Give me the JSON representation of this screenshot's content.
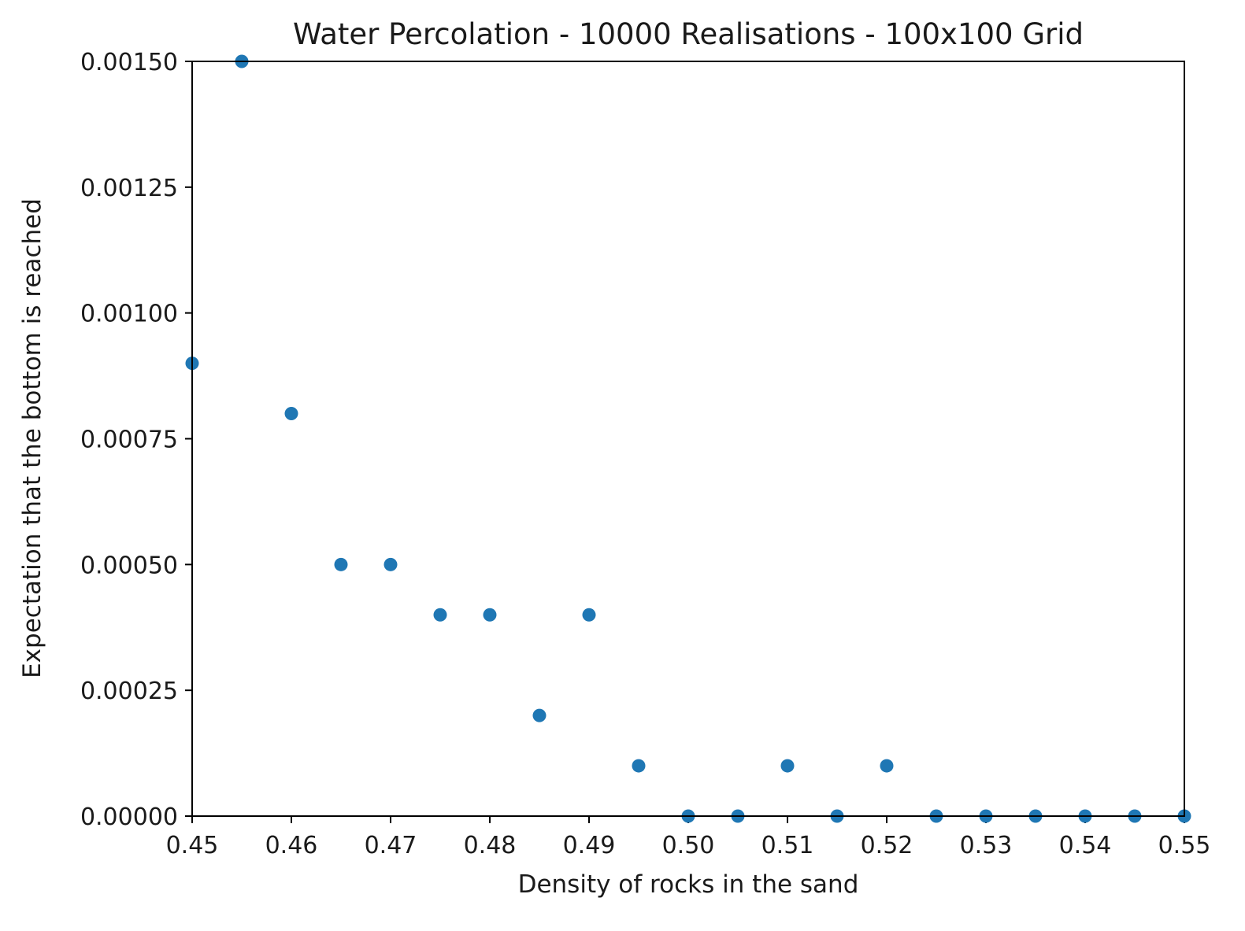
{
  "chart_data": {
    "type": "scatter",
    "title": "Water Percolation - 10000 Realisations - 100x100 Grid",
    "xlabel": "Density of rocks in the sand",
    "ylabel": "Expectation that the bottom is reached",
    "xlim": [
      0.45,
      0.55
    ],
    "ylim": [
      0.0,
      0.0015
    ],
    "grid": false,
    "marker_color": "#1f77b4",
    "x_ticks": [
      "0.45",
      "0.46",
      "0.47",
      "0.48",
      "0.49",
      "0.50",
      "0.51",
      "0.52",
      "0.53",
      "0.54",
      "0.55"
    ],
    "x_tick_values": [
      0.45,
      0.46,
      0.47,
      0.48,
      0.49,
      0.5,
      0.51,
      0.52,
      0.53,
      0.54,
      0.55
    ],
    "y_ticks": [
      "0.00000",
      "0.00025",
      "0.00050",
      "0.00075",
      "0.00100",
      "0.00125",
      "0.00150"
    ],
    "y_tick_values": [
      0.0,
      0.00025,
      0.0005,
      0.00075,
      0.001,
      0.00125,
      0.0015
    ],
    "points": [
      {
        "x": 0.45,
        "y": 0.0009
      },
      {
        "x": 0.455,
        "y": 0.0015
      },
      {
        "x": 0.46,
        "y": 0.0008
      },
      {
        "x": 0.465,
        "y": 0.0005
      },
      {
        "x": 0.47,
        "y": 0.0005
      },
      {
        "x": 0.475,
        "y": 0.0004
      },
      {
        "x": 0.48,
        "y": 0.0004
      },
      {
        "x": 0.485,
        "y": 0.0002
      },
      {
        "x": 0.49,
        "y": 0.0004
      },
      {
        "x": 0.495,
        "y": 0.0001
      },
      {
        "x": 0.5,
        "y": 0.0
      },
      {
        "x": 0.505,
        "y": 0.0
      },
      {
        "x": 0.51,
        "y": 0.0001
      },
      {
        "x": 0.515,
        "y": 0.0
      },
      {
        "x": 0.52,
        "y": 0.0001
      },
      {
        "x": 0.525,
        "y": 0.0
      },
      {
        "x": 0.53,
        "y": 0.0
      },
      {
        "x": 0.535,
        "y": 0.0
      },
      {
        "x": 0.54,
        "y": 0.0
      },
      {
        "x": 0.545,
        "y": 0.0
      },
      {
        "x": 0.55,
        "y": 0.0
      }
    ]
  }
}
